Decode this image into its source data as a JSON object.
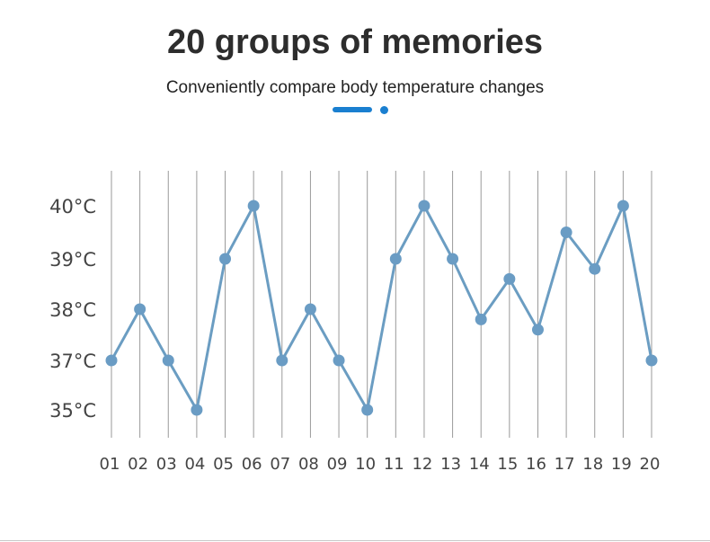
{
  "header": {
    "title": "20 groups of memories",
    "subtitle": "Conveniently compare body temperature changes"
  },
  "colors": {
    "accent": "#1a7fd0",
    "line": "#6b9dc2",
    "point": "#6a9cc4",
    "gridline": "#9a9a9a",
    "axis_text": "#444444"
  },
  "chart_data": {
    "type": "line",
    "title": "20 groups of memories",
    "subtitle": "Conveniently compare body temperature changes",
    "xlabel": "",
    "ylabel": "",
    "categories": [
      "01",
      "02",
      "03",
      "04",
      "05",
      "06",
      "07",
      "08",
      "09",
      "10",
      "11",
      "12",
      "13",
      "14",
      "15",
      "16",
      "17",
      "18",
      "19",
      "20"
    ],
    "y_ticks": [
      {
        "label": "35°C",
        "value": 35
      },
      {
        "label": "37°C",
        "value": 37
      },
      {
        "label": "38°C",
        "value": 38
      },
      {
        "label": "39°C",
        "value": 39
      },
      {
        "label": "40°C",
        "value": 40
      }
    ],
    "values": [
      37.0,
      38.0,
      37.0,
      36.0,
      39.0,
      40.0,
      37.0,
      38.0,
      37.0,
      36.0,
      39.0,
      40.0,
      39.0,
      37.8,
      38.6,
      37.6,
      39.5,
      38.8,
      40.0,
      37.0
    ],
    "grid": "vertical",
    "legend": "none"
  }
}
